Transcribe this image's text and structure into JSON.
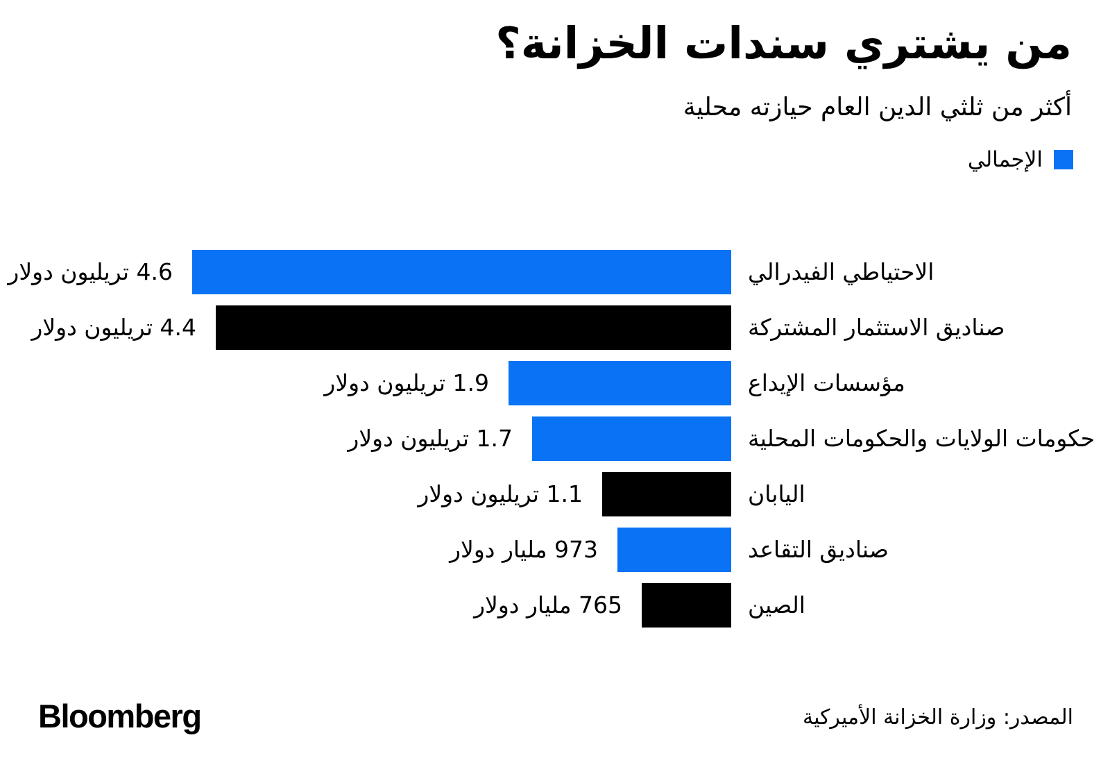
{
  "header": {
    "title": "من يشتري سندات الخزانة؟",
    "subtitle": "أكثر من ثلثي الدين العام حيازته محلية"
  },
  "legend": {
    "label": "الإجمالي",
    "swatch_color": "#0A73F5"
  },
  "chart_data": {
    "type": "bar",
    "orientation": "horizontal",
    "text_direction": "rtl",
    "title": "من يشتري سندات الخزانة؟",
    "subtitle": "أكثر من ثلثي الدين العام حيازته محلية",
    "legend_entries": [
      {
        "label": "الإجمالي",
        "color": "#0A73F5",
        "position": "top-right"
      }
    ],
    "categories": [
      "الاحتياطي الفيدرالي",
      "صناديق الاستثمار المشتركة",
      "مؤسسات الإيداع",
      "حكومات الولايات والحكومات المحلية",
      "اليابان",
      "صناديق التقاعد",
      "الصين"
    ],
    "series": [
      {
        "name": "الإجمالي",
        "values_trillions_usd": [
          4.6,
          4.4,
          1.9,
          1.7,
          1.1,
          0.973,
          0.765
        ]
      }
    ],
    "value_labels": [
      "4.6 تريليون دولار",
      "4.4 تريليون دولار",
      "1.9 تريليون دولار",
      "1.7 تريليون دولار",
      "1.1 تريليون دولار",
      "973 مليار دولار",
      "765 مليار دولار"
    ],
    "bar_colors": [
      "#0A73F5",
      "#000000",
      "#0A73F5",
      "#0A73F5",
      "#000000",
      "#0A73F5",
      "#000000"
    ],
    "xlim": [
      0,
      4.6
    ],
    "grid": false
  },
  "footer": {
    "brand": "Bloomberg",
    "source": "المصدر: وزارة الخزانة الأميركية"
  }
}
